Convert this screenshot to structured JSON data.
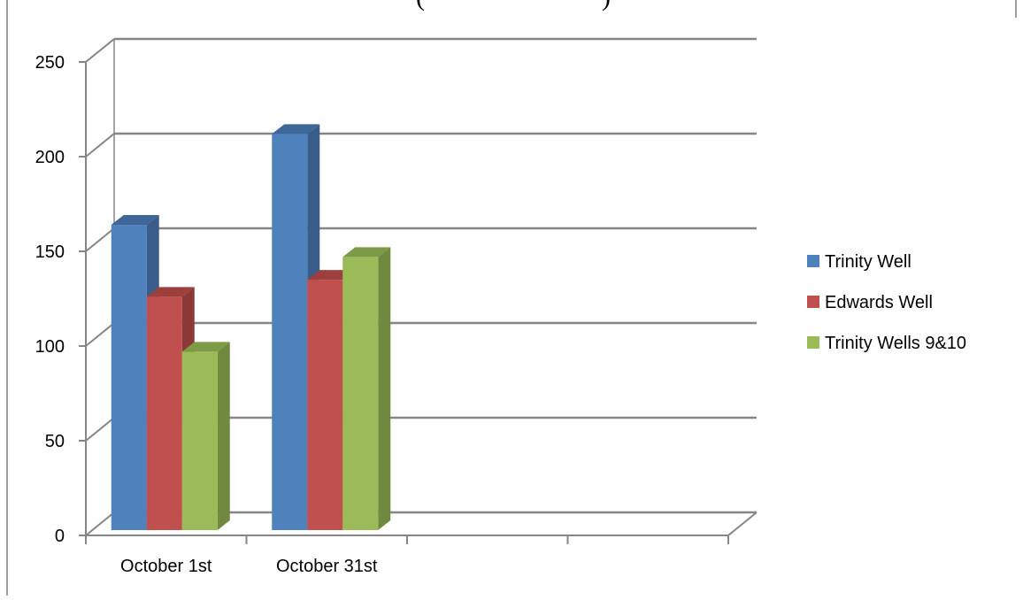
{
  "chart_data": {
    "type": "bar",
    "title": "(",
    "title_tail": ")",
    "categories": [
      "October 1st",
      "October 31st",
      "",
      ""
    ],
    "series": [
      {
        "name": "Trinity Well",
        "values": [
          164,
          212,
          null,
          null
        ],
        "color": "#4f81bd",
        "side_color": "#385d8a",
        "top_color": "#3e6797"
      },
      {
        "name": "Edwards Well",
        "values": [
          126,
          135,
          null,
          null
        ],
        "color": "#c0504d",
        "side_color": "#8c3836",
        "top_color": "#9c3f3d"
      },
      {
        "name": "Trinity Wells 9&10",
        "values": [
          97,
          147,
          null,
          null
        ],
        "color": "#9bbb59",
        "side_color": "#71893f",
        "top_color": "#7e9a46"
      }
    ],
    "ylim": [
      0,
      250
    ],
    "yticks": [
      "0",
      "50",
      "100",
      "150",
      "200",
      "250"
    ],
    "grid": true,
    "legend": "right",
    "axis_color": "#868686",
    "grid_color": "#868686"
  }
}
